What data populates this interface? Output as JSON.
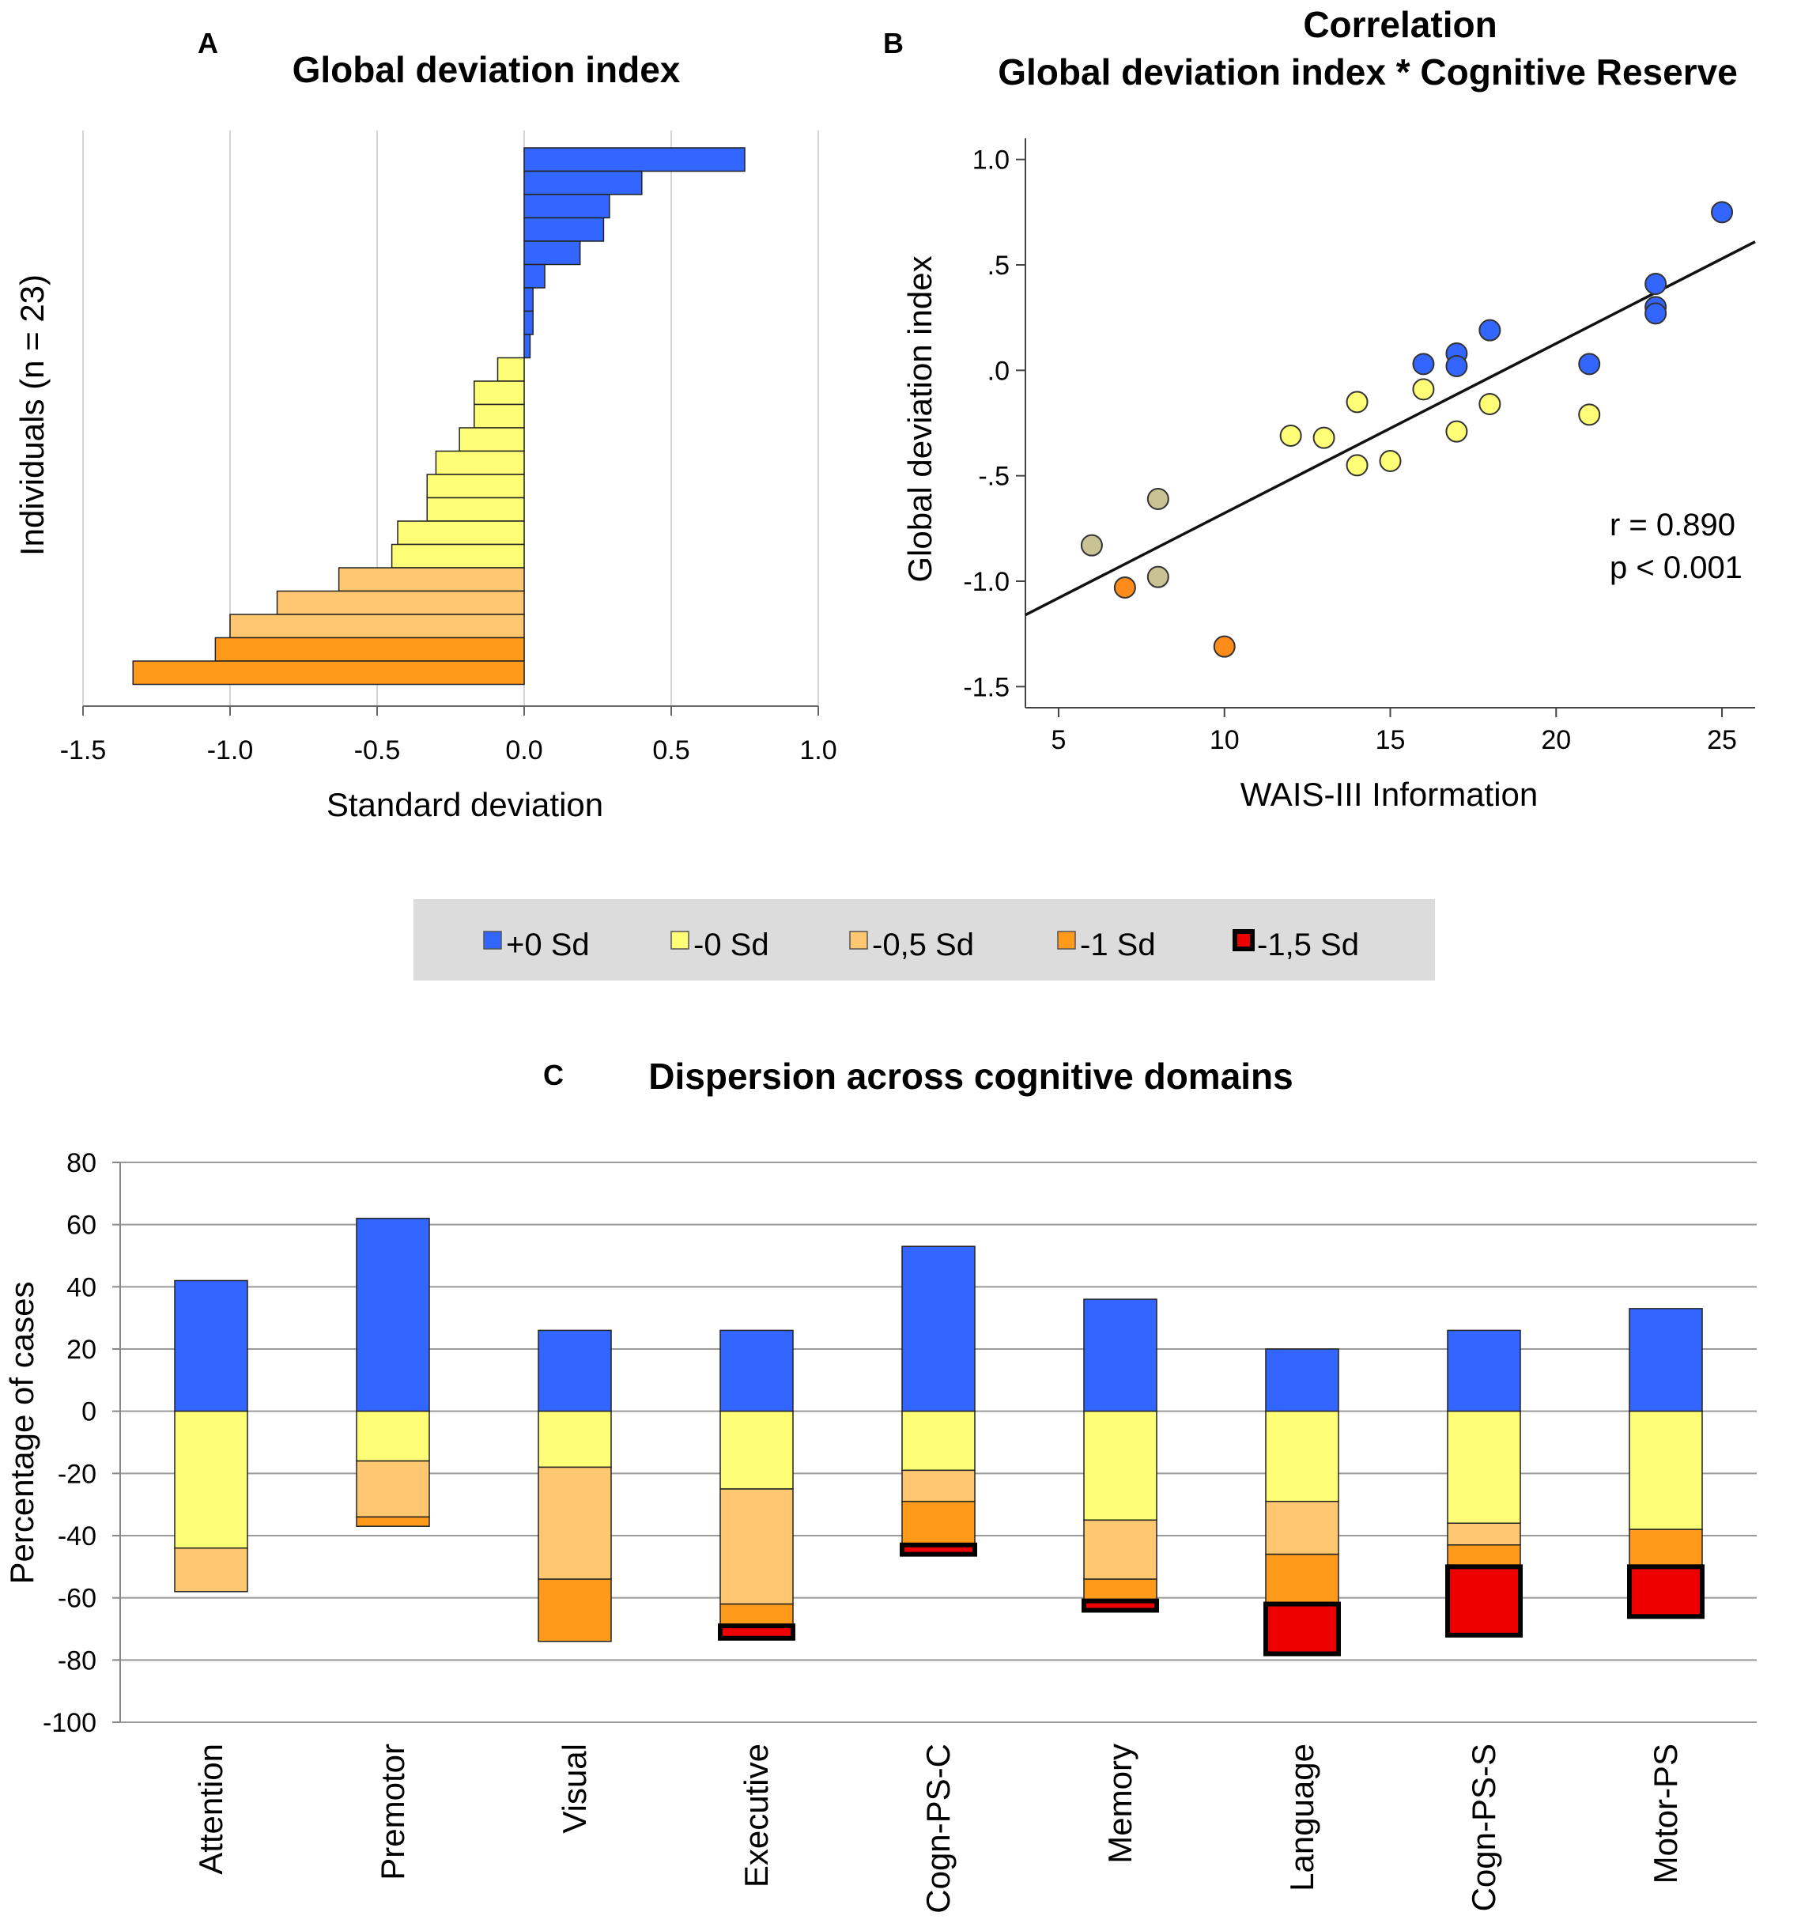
{
  "colors": {
    "plus0": "#3366ff",
    "minus0": "#ffff77",
    "minus05": "#ffc870",
    "minus1": "#ff9a1a",
    "minus15": "#ee0000",
    "grid_light": "#d4d4d4",
    "grid_dark": "#9a9a9a",
    "legend_bg": "#dcdcdc",
    "scatter_tan": "#c8c294",
    "scatter_orange": "#ff8c1a"
  },
  "panels": {
    "A": {
      "letter": "A"
    },
    "B": {
      "letter": "B"
    },
    "C": {
      "letter": "C"
    }
  },
  "legend": {
    "items": [
      {
        "label": "+0 Sd",
        "color_key": "plus0"
      },
      {
        "label": "-0 Sd",
        "color_key": "minus0"
      },
      {
        "label": "-0,5 Sd",
        "color_key": "minus05"
      },
      {
        "label": "-1 Sd",
        "color_key": "minus1"
      },
      {
        "label": "-1,5 Sd",
        "color_key": "minus15"
      }
    ]
  },
  "chart_data": [
    {
      "id": "A",
      "type": "bar",
      "orientation": "horizontal",
      "title": "Global deviation index",
      "xlabel": "Standard deviation",
      "ylabel": "Individuals (n = 23)",
      "xlim": [
        -1.5,
        1.0
      ],
      "xticks": [
        "-1.5",
        "-1.0",
        "-0.5",
        "0.0",
        "0.5",
        "1.0"
      ],
      "xtick_values": [
        -1.5,
        -1.0,
        -0.5,
        0.0,
        0.5,
        1.0
      ],
      "grid": true,
      "values": [
        0.75,
        0.4,
        0.29,
        0.27,
        0.19,
        0.07,
        0.03,
        0.03,
        0.02,
        -0.09,
        -0.17,
        -0.17,
        -0.22,
        -0.3,
        -0.33,
        -0.33,
        -0.43,
        -0.45,
        -0.63,
        -0.84,
        -1.0,
        -1.05,
        -1.33
      ],
      "color_keys": [
        "plus0",
        "plus0",
        "plus0",
        "plus0",
        "plus0",
        "plus0",
        "plus0",
        "plus0",
        "plus0",
        "minus0",
        "minus0",
        "minus0",
        "minus0",
        "minus0",
        "minus0",
        "minus0",
        "minus0",
        "minus0",
        "minus05",
        "minus05",
        "minus05",
        "minus1",
        "minus1"
      ]
    },
    {
      "id": "B",
      "type": "scatter",
      "title": "Correlation",
      "subtitle": "Global deviation index * Cognitive Reserve",
      "xlabel": "WAIS-III Information",
      "ylabel": "Global deviation index",
      "xlim": [
        4,
        26
      ],
      "ylim": [
        -1.6,
        1.1
      ],
      "xticks": [
        "5",
        "10",
        "15",
        "20",
        "25"
      ],
      "xtick_values": [
        5,
        10,
        15,
        20,
        25
      ],
      "yticks": [
        "1.0",
        ".5",
        ".0",
        "-.5",
        "-1.0",
        "-1.5"
      ],
      "ytick_values": [
        1.0,
        0.5,
        0.0,
        -0.5,
        -1.0,
        -1.5
      ],
      "points": [
        {
          "x": 25,
          "y": 0.75,
          "color_key": "plus0"
        },
        {
          "x": 23,
          "y": 0.41,
          "color_key": "plus0"
        },
        {
          "x": 23,
          "y": 0.3,
          "color_key": "plus0"
        },
        {
          "x": 23,
          "y": 0.27,
          "color_key": "plus0"
        },
        {
          "x": 18,
          "y": 0.19,
          "color_key": "plus0"
        },
        {
          "x": 17,
          "y": 0.08,
          "color_key": "plus0"
        },
        {
          "x": 17,
          "y": 0.02,
          "color_key": "plus0"
        },
        {
          "x": 16,
          "y": 0.03,
          "color_key": "plus0"
        },
        {
          "x": 21,
          "y": 0.03,
          "color_key": "plus0"
        },
        {
          "x": 16,
          "y": -0.09,
          "color_key": "minus0"
        },
        {
          "x": 14,
          "y": -0.15,
          "color_key": "minus0"
        },
        {
          "x": 18,
          "y": -0.16,
          "color_key": "minus0"
        },
        {
          "x": 21,
          "y": -0.21,
          "color_key": "minus0"
        },
        {
          "x": 17,
          "y": -0.29,
          "color_key": "minus0"
        },
        {
          "x": 12,
          "y": -0.31,
          "color_key": "minus0"
        },
        {
          "x": 13,
          "y": -0.32,
          "color_key": "minus0"
        },
        {
          "x": 15,
          "y": -0.43,
          "color_key": "minus0"
        },
        {
          "x": 14,
          "y": -0.45,
          "color_key": "minus0"
        },
        {
          "x": 8,
          "y": -0.61,
          "color_key": "scatter_tan"
        },
        {
          "x": 6,
          "y": -0.83,
          "color_key": "scatter_tan"
        },
        {
          "x": 8,
          "y": -0.98,
          "color_key": "scatter_tan"
        },
        {
          "x": 7,
          "y": -1.03,
          "color_key": "scatter_orange"
        },
        {
          "x": 10,
          "y": -1.31,
          "color_key": "scatter_orange"
        }
      ],
      "fit_line": {
        "x": [
          4,
          26
        ],
        "y": [
          -1.16,
          0.61
        ]
      },
      "annotations": [
        "r = 0.890",
        "p < 0.001"
      ]
    },
    {
      "id": "C",
      "type": "bar",
      "stacked": true,
      "title": "Dispersion across cognitive domains",
      "xlabel": "",
      "ylabel": "Percentage of cases",
      "ylim": [
        -100,
        80
      ],
      "yticks": [
        "80",
        "60",
        "40",
        "20",
        "0",
        "-20",
        "-40",
        "-60",
        "-80",
        "-100"
      ],
      "ytick_values": [
        80,
        60,
        40,
        20,
        0,
        -20,
        -40,
        -60,
        -80,
        -100
      ],
      "categories": [
        "Attention",
        "Premotor",
        "Visual",
        "Executive",
        "Cogn-PS-C",
        "Memory",
        "Language",
        "Cogn-PS-S",
        "Motor-PS"
      ],
      "series": [
        {
          "name": "+0 Sd",
          "color_key": "plus0",
          "values": [
            42,
            62,
            26,
            26,
            53,
            36,
            20,
            26,
            33
          ]
        },
        {
          "name": "-0 Sd",
          "color_key": "minus0",
          "values": [
            -44,
            -16,
            -18,
            -25,
            -19,
            -35,
            -29,
            -36,
            -38
          ]
        },
        {
          "name": "-0,5 Sd",
          "color_key": "minus05",
          "values": [
            -14,
            -18,
            -36,
            -37,
            -10,
            -19,
            -17,
            -7,
            0
          ]
        },
        {
          "name": "-1 Sd",
          "color_key": "minus1",
          "values": [
            0,
            -3,
            -20,
            -7,
            -14,
            -7,
            -16,
            -7,
            -12
          ]
        },
        {
          "name": "-1,5 Sd",
          "color_key": "minus15",
          "values": [
            0,
            0,
            0,
            -4,
            -3,
            -3,
            -16,
            -22,
            -16
          ]
        }
      ]
    }
  ]
}
